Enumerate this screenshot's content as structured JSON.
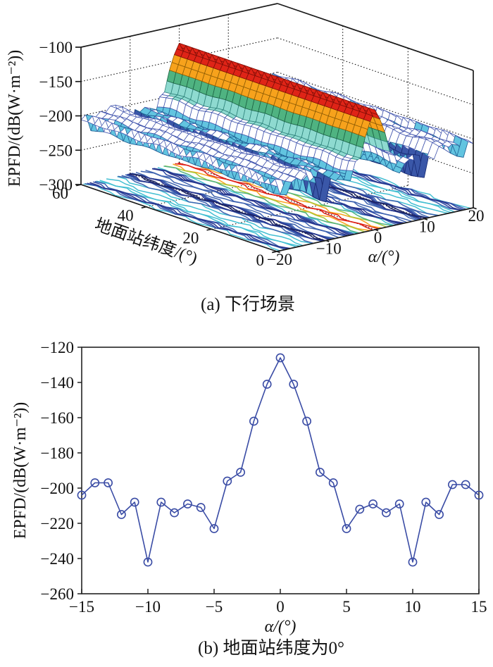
{
  "figure": {
    "background": "#ffffff",
    "axis_color": "#1a1a1a",
    "grid_style": "dotted-black"
  },
  "chart_data": [
    {
      "type": "surface3d",
      "title": "(a) 下行场景",
      "xlabel": "α/(°)",
      "ylabel": "地面站纬度/(°)",
      "zlabel": "EPFD/(dB(W·m⁻²))",
      "x_ticks": [
        -20,
        -10,
        0,
        10,
        20
      ],
      "y_ticks": [
        60,
        40,
        20,
        0
      ],
      "z_ticks": [
        -100,
        -150,
        -200,
        -250,
        -300
      ],
      "x_range": [
        -20,
        20
      ],
      "y_range": [
        0,
        60
      ],
      "z_range": [
        -300,
        -100
      ],
      "surface": "EPFD ridge at α=0 extruded along ground-station latitude with deep notches near α=±5 and α=±10; contour projection on the floor plane",
      "profile_x": [
        -20,
        -19,
        -18,
        -17,
        -16,
        -15,
        -14,
        -13,
        -12,
        -11,
        -10,
        -9,
        -8,
        -7,
        -6,
        -5,
        -4,
        -3,
        -2,
        -1,
        0,
        1,
        2,
        3,
        4,
        5,
        6,
        7,
        8,
        9,
        10,
        11,
        12,
        13,
        14,
        15,
        16,
        17,
        18,
        19,
        20
      ],
      "profile_z": [
        -206,
        -199,
        -222,
        -204,
        -199,
        -204,
        -197,
        -197,
        -215,
        -208,
        -242,
        -208,
        -214,
        -209,
        -211,
        -223,
        -196,
        -191,
        -162,
        -141,
        -126,
        -141,
        -162,
        -191,
        -197,
        -223,
        -212,
        -209,
        -214,
        -209,
        -242,
        -208,
        -215,
        -198,
        -198,
        -204,
        -199,
        -204,
        -222,
        -199,
        -206
      ],
      "colormap_bands": [
        {
          "min_z": -140,
          "fill": "#DF2417",
          "edge": "#7E0E07"
        },
        {
          "min_z": -158,
          "fill": "#F7A21C",
          "edge": "#8F5D05"
        },
        {
          "min_z": -177,
          "fill": "#4FB381",
          "edge": "#1C6243"
        },
        {
          "min_z": -193,
          "fill": "#8EDAD0",
          "edge": "#2E837B"
        },
        {
          "min_z": -211,
          "fill": "#FFFFFF",
          "edge": "#4356AE"
        },
        {
          "min_z": -224,
          "fill": "#62C4E0",
          "edge": "#1D5E92"
        },
        {
          "min_z": -241,
          "fill": "#3A57A8",
          "edge": "#15276F"
        },
        {
          "min_z": -999,
          "fill": "#232F7E",
          "edge": "#0C1448"
        }
      ],
      "contour_levels": [
        {
          "level": -130,
          "color": "#E02318"
        },
        {
          "level": -150,
          "color": "#F7A21C"
        },
        {
          "level": -170,
          "color": "#A9CB3B"
        },
        {
          "level": -190,
          "color": "#4FB381"
        },
        {
          "level": -200,
          "color": "#43BFD2"
        },
        {
          "level": -210,
          "color": "#3E63B0"
        },
        {
          "level": -216,
          "color": "#2E4AA5"
        },
        {
          "level": -221,
          "color": "#27348B"
        },
        {
          "level": -237,
          "color": "#1C2566"
        }
      ]
    },
    {
      "type": "line",
      "title": "(b) 地面站纬度为0°",
      "xlabel": "α/(°)",
      "ylabel": "EPFD/(dB(W·m⁻²))",
      "marker": "open-circle",
      "line_color": "#3A4CA5",
      "x_ticks": [
        -15,
        -10,
        -5,
        0,
        5,
        10,
        15
      ],
      "y_ticks": [
        -120,
        -140,
        -160,
        -180,
        -200,
        -220,
        -240,
        -260
      ],
      "xlim": [
        -15,
        15
      ],
      "ylim": [
        -260,
        -120
      ],
      "x": [
        -15,
        -14,
        -13,
        -12,
        -11,
        -10,
        -9,
        -8,
        -7,
        -6,
        -5,
        -4,
        -3,
        -2,
        -1,
        0,
        1,
        2,
        3,
        4,
        5,
        6,
        7,
        8,
        9,
        10,
        11,
        12,
        13,
        14,
        15
      ],
      "y": [
        -204,
        -197,
        -197,
        -215,
        -208,
        -242,
        -208,
        -214,
        -209,
        -211,
        -223,
        -196,
        -191,
        -162,
        -141,
        -126,
        -141,
        -162,
        -191,
        -197,
        -223,
        -212,
        -209,
        -214,
        -209,
        -242,
        -208,
        -215,
        -198,
        -198,
        -204
      ]
    }
  ]
}
